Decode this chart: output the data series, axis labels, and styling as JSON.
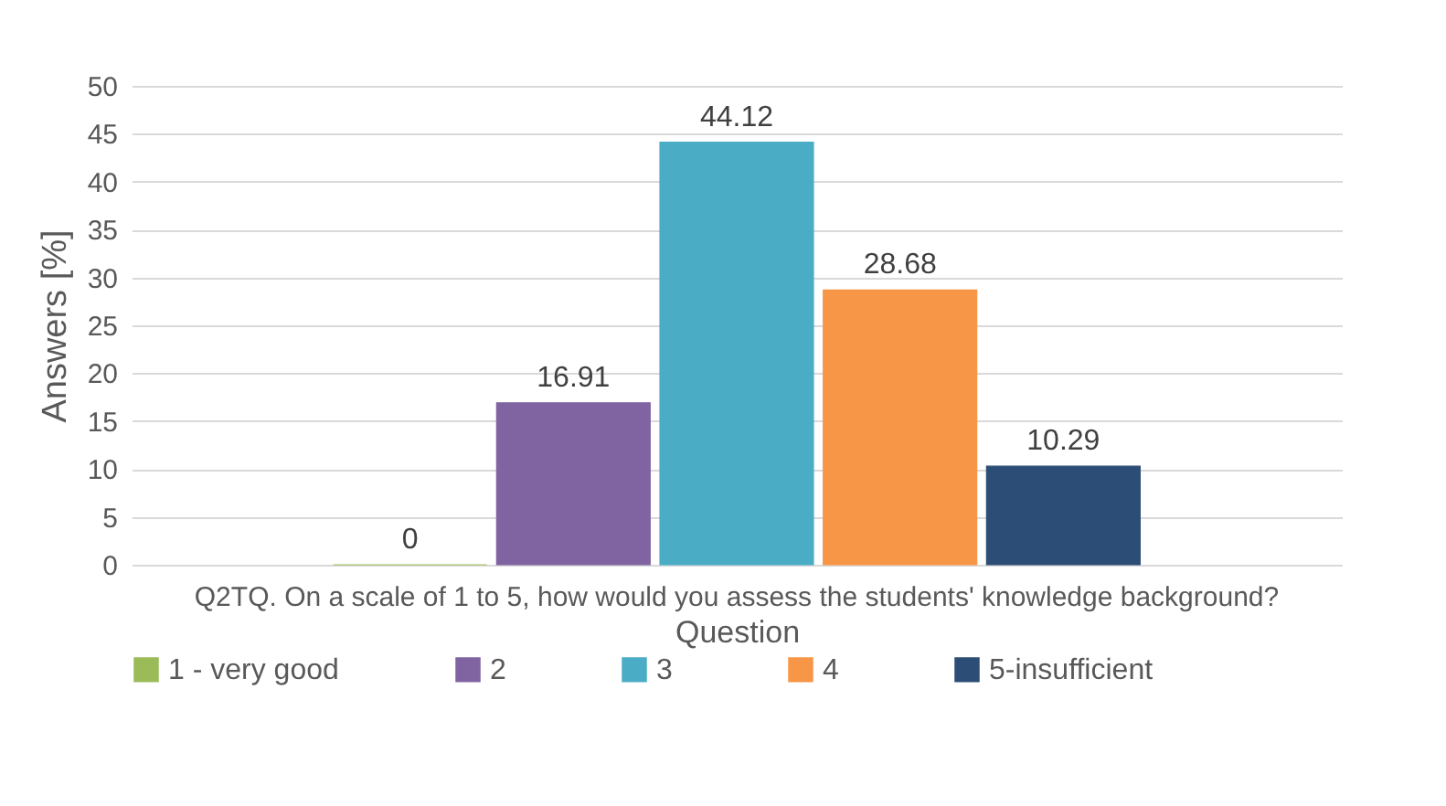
{
  "chart_data": {
    "type": "bar",
    "xlabel": "Question",
    "ylabel": "Answers [%]",
    "categories": [
      "Q2TQ. On a scale of 1 to 5, how would you assess the students' knowledge background?"
    ],
    "series": [
      {
        "name": "1 - very good",
        "color": "#9bbb59",
        "values": [
          0
        ]
      },
      {
        "name": "2",
        "color": "#8064a2",
        "values": [
          16.91
        ]
      },
      {
        "name": "3",
        "color": "#4bacc6",
        "values": [
          44.12
        ]
      },
      {
        "name": "4",
        "color": "#f79646",
        "values": [
          28.68
        ]
      },
      {
        "name": "5-insufficient",
        "color": "#2c4d75",
        "values": [
          10.29
        ]
      }
    ],
    "ylim": [
      0,
      50
    ],
    "yticks": [
      0,
      5,
      10,
      15,
      20,
      25,
      30,
      35,
      40,
      45,
      50
    ],
    "grid": "y",
    "legend": "bottom",
    "data_labels": true
  }
}
